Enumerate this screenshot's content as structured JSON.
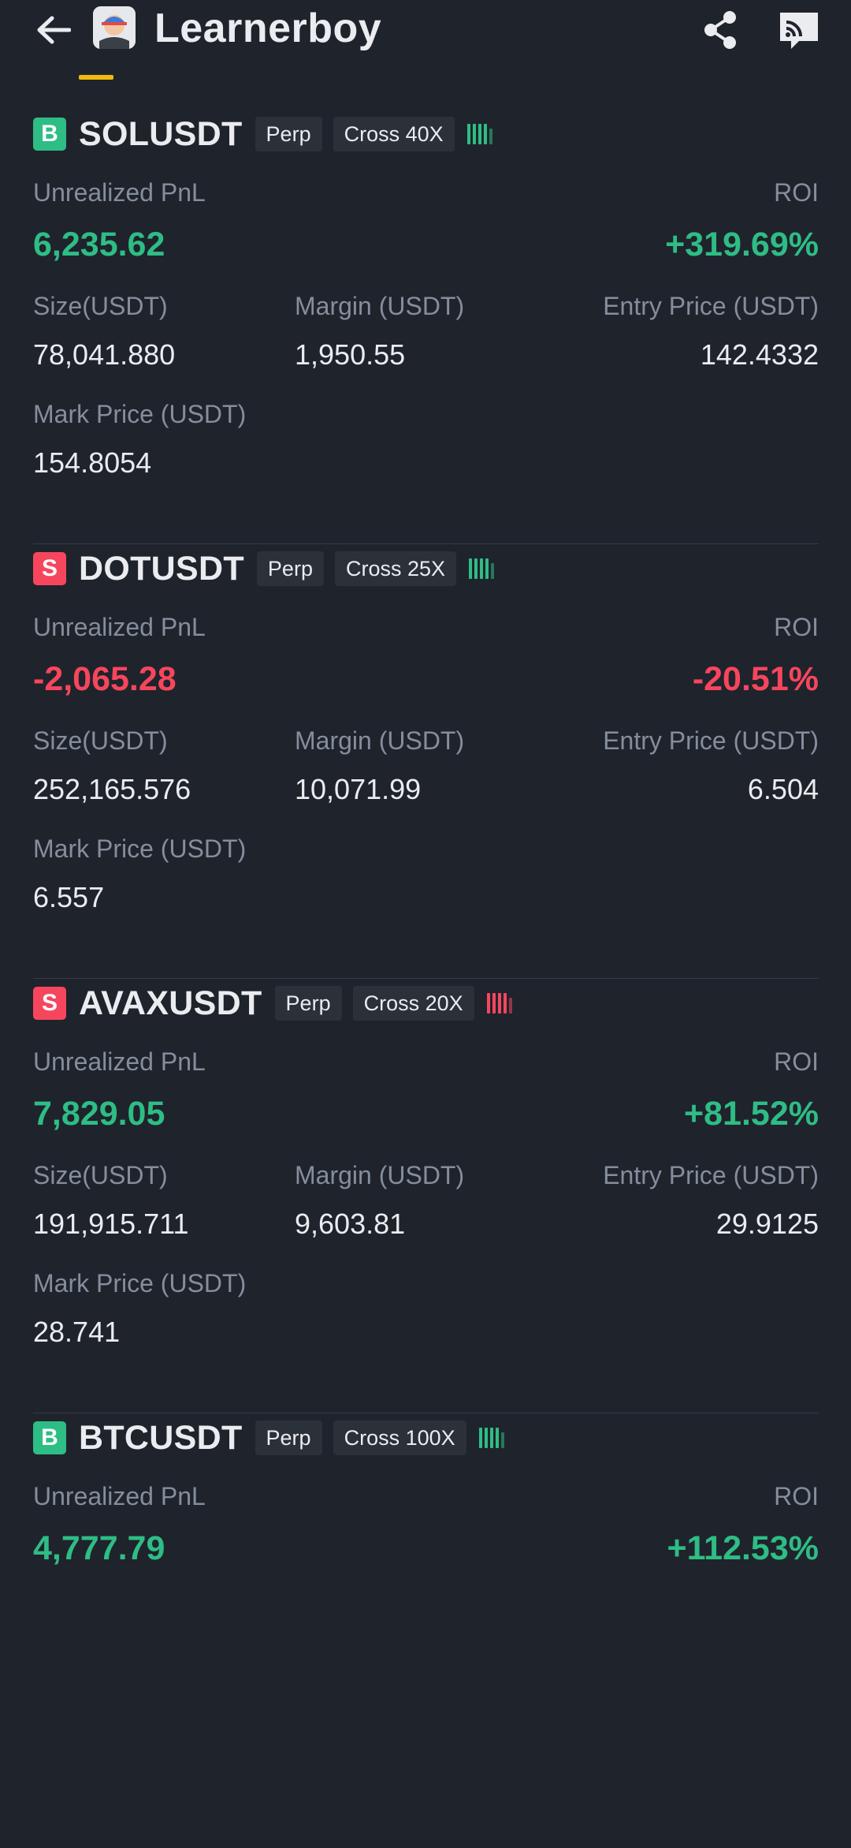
{
  "header": {
    "title": "Learnerboy"
  },
  "colors": {
    "background": "#1f232c",
    "profit": "#2ebd85",
    "loss": "#f6465d",
    "accent": "#f0b90b",
    "label": "#848e9c"
  },
  "labels": {
    "unrealized_pnl": "Unrealized PnL",
    "roi": "ROI",
    "size": "Size(USDT)",
    "margin": "Margin (USDT)",
    "entry_price": "Entry Price (USDT)",
    "mark_price": "Mark Price (USDT)"
  },
  "positions": [
    {
      "side": "B",
      "symbol": "SOLUSDT",
      "type": "Perp",
      "leverage": "Cross 40X",
      "risk_color": "green",
      "pnl": "6,235.62",
      "pnl_color": "green",
      "roi": "+319.69%",
      "size": "78,041.880",
      "margin": "1,950.55",
      "entry_price": "142.4332",
      "mark_price": "154.8054"
    },
    {
      "side": "S",
      "symbol": "DOTUSDT",
      "type": "Perp",
      "leverage": "Cross 25X",
      "risk_color": "green",
      "pnl": "-2,065.28",
      "pnl_color": "red",
      "roi": "-20.51%",
      "size": "252,165.576",
      "margin": "10,071.99",
      "entry_price": "6.504",
      "mark_price": "6.557"
    },
    {
      "side": "S",
      "symbol": "AVAXUSDT",
      "type": "Perp",
      "leverage": "Cross 20X",
      "risk_color": "red",
      "pnl": "7,829.05",
      "pnl_color": "green",
      "roi": "+81.52%",
      "size": "191,915.711",
      "margin": "9,603.81",
      "entry_price": "29.9125",
      "mark_price": "28.741"
    },
    {
      "side": "B",
      "symbol": "BTCUSDT",
      "type": "Perp",
      "leverage": "Cross 100X",
      "risk_color": "green",
      "pnl": "4,777.79",
      "pnl_color": "green",
      "roi": "+112.53%"
    }
  ]
}
